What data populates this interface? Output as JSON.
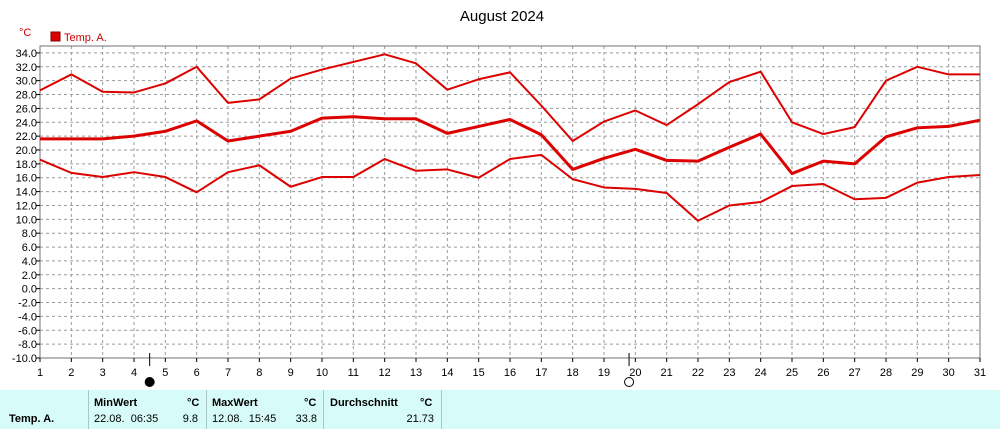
{
  "chart_data": {
    "type": "line",
    "title": "August 2024",
    "y_unit": "°C",
    "legend": "Temp. A.",
    "x": [
      1,
      2,
      3,
      4,
      5,
      6,
      7,
      8,
      9,
      10,
      11,
      12,
      13,
      14,
      15,
      16,
      17,
      18,
      19,
      20,
      21,
      22,
      23,
      24,
      25,
      26,
      27,
      28,
      29,
      30,
      31
    ],
    "x_tick_labels": [
      "1",
      "2",
      "3",
      "4",
      "5",
      "6",
      "7",
      "8",
      "9",
      "10",
      "11",
      "12",
      "13",
      "14",
      "15",
      "16",
      "17",
      "18",
      "19",
      "20",
      "21",
      "22",
      "23",
      "24",
      "25",
      "26",
      "27",
      "28",
      "29",
      "30",
      "31"
    ],
    "ylim": [
      -10,
      36
    ],
    "y_tick_labels": [
      "34.0",
      "32.0",
      "30.0",
      "28.0",
      "26.0",
      "24.0",
      "22.0",
      "20.0",
      "18.0",
      "16.0",
      "14.0",
      "12.0",
      "10.0",
      "8.0",
      "6.0",
      "4.0",
      "2.0",
      "0.0",
      "-2.0",
      "-4.0",
      "-6.0",
      "-8.0",
      "-10.0"
    ],
    "grid": true,
    "legend_position": "top-left",
    "series": [
      {
        "name": "max",
        "color": "#dd0000",
        "values": [
          28.6,
          30.9,
          28.4,
          28.3,
          29.6,
          32.0,
          26.8,
          27.3,
          30.3,
          31.6,
          32.7,
          33.8,
          32.5,
          28.7,
          30.2,
          31.2,
          26.4,
          21.3,
          24.1,
          25.7,
          23.6,
          26.6,
          29.8,
          31.3,
          24.0,
          22.3,
          23.3,
          30.0,
          32.0,
          30.9,
          30.9
        ]
      },
      {
        "name": "avg",
        "color": "#dd0000",
        "values": [
          21.6,
          21.6,
          21.6,
          22.0,
          22.7,
          24.2,
          21.3,
          22.0,
          22.7,
          24.6,
          24.8,
          24.5,
          24.5,
          22.4,
          23.4,
          24.4,
          22.2,
          17.2,
          18.8,
          20.1,
          18.5,
          18.4,
          20.4,
          22.3,
          16.6,
          18.4,
          18.0,
          21.9,
          23.2,
          23.4,
          24.3
        ]
      },
      {
        "name": "min",
        "color": "#dd0000",
        "values": [
          18.6,
          16.7,
          16.1,
          16.8,
          16.1,
          13.9,
          16.8,
          17.8,
          14.7,
          16.1,
          16.1,
          18.7,
          17.0,
          17.2,
          16.0,
          18.7,
          19.3,
          15.8,
          14.6,
          14.4,
          13.8,
          9.8,
          12.0,
          12.5,
          14.8,
          15.1,
          12.9,
          13.1,
          15.3,
          16.1,
          16.4
        ]
      }
    ],
    "moon_markers": [
      {
        "day": 4.5,
        "phase": "new-moon"
      },
      {
        "day": 19.8,
        "phase": "full-moon"
      }
    ]
  },
  "stats": {
    "sensor_label": "Temp. A.",
    "min": {
      "label": "MinWert",
      "unit": "°C",
      "datetime": "22.08.  06:35",
      "value": "9.8"
    },
    "max": {
      "label": "MaxWert",
      "unit": "°C",
      "datetime": "12.08.  15:45",
      "value": "33.8"
    },
    "avg": {
      "label": "Durchschnitt",
      "unit": "°C",
      "value": "21.73"
    }
  }
}
